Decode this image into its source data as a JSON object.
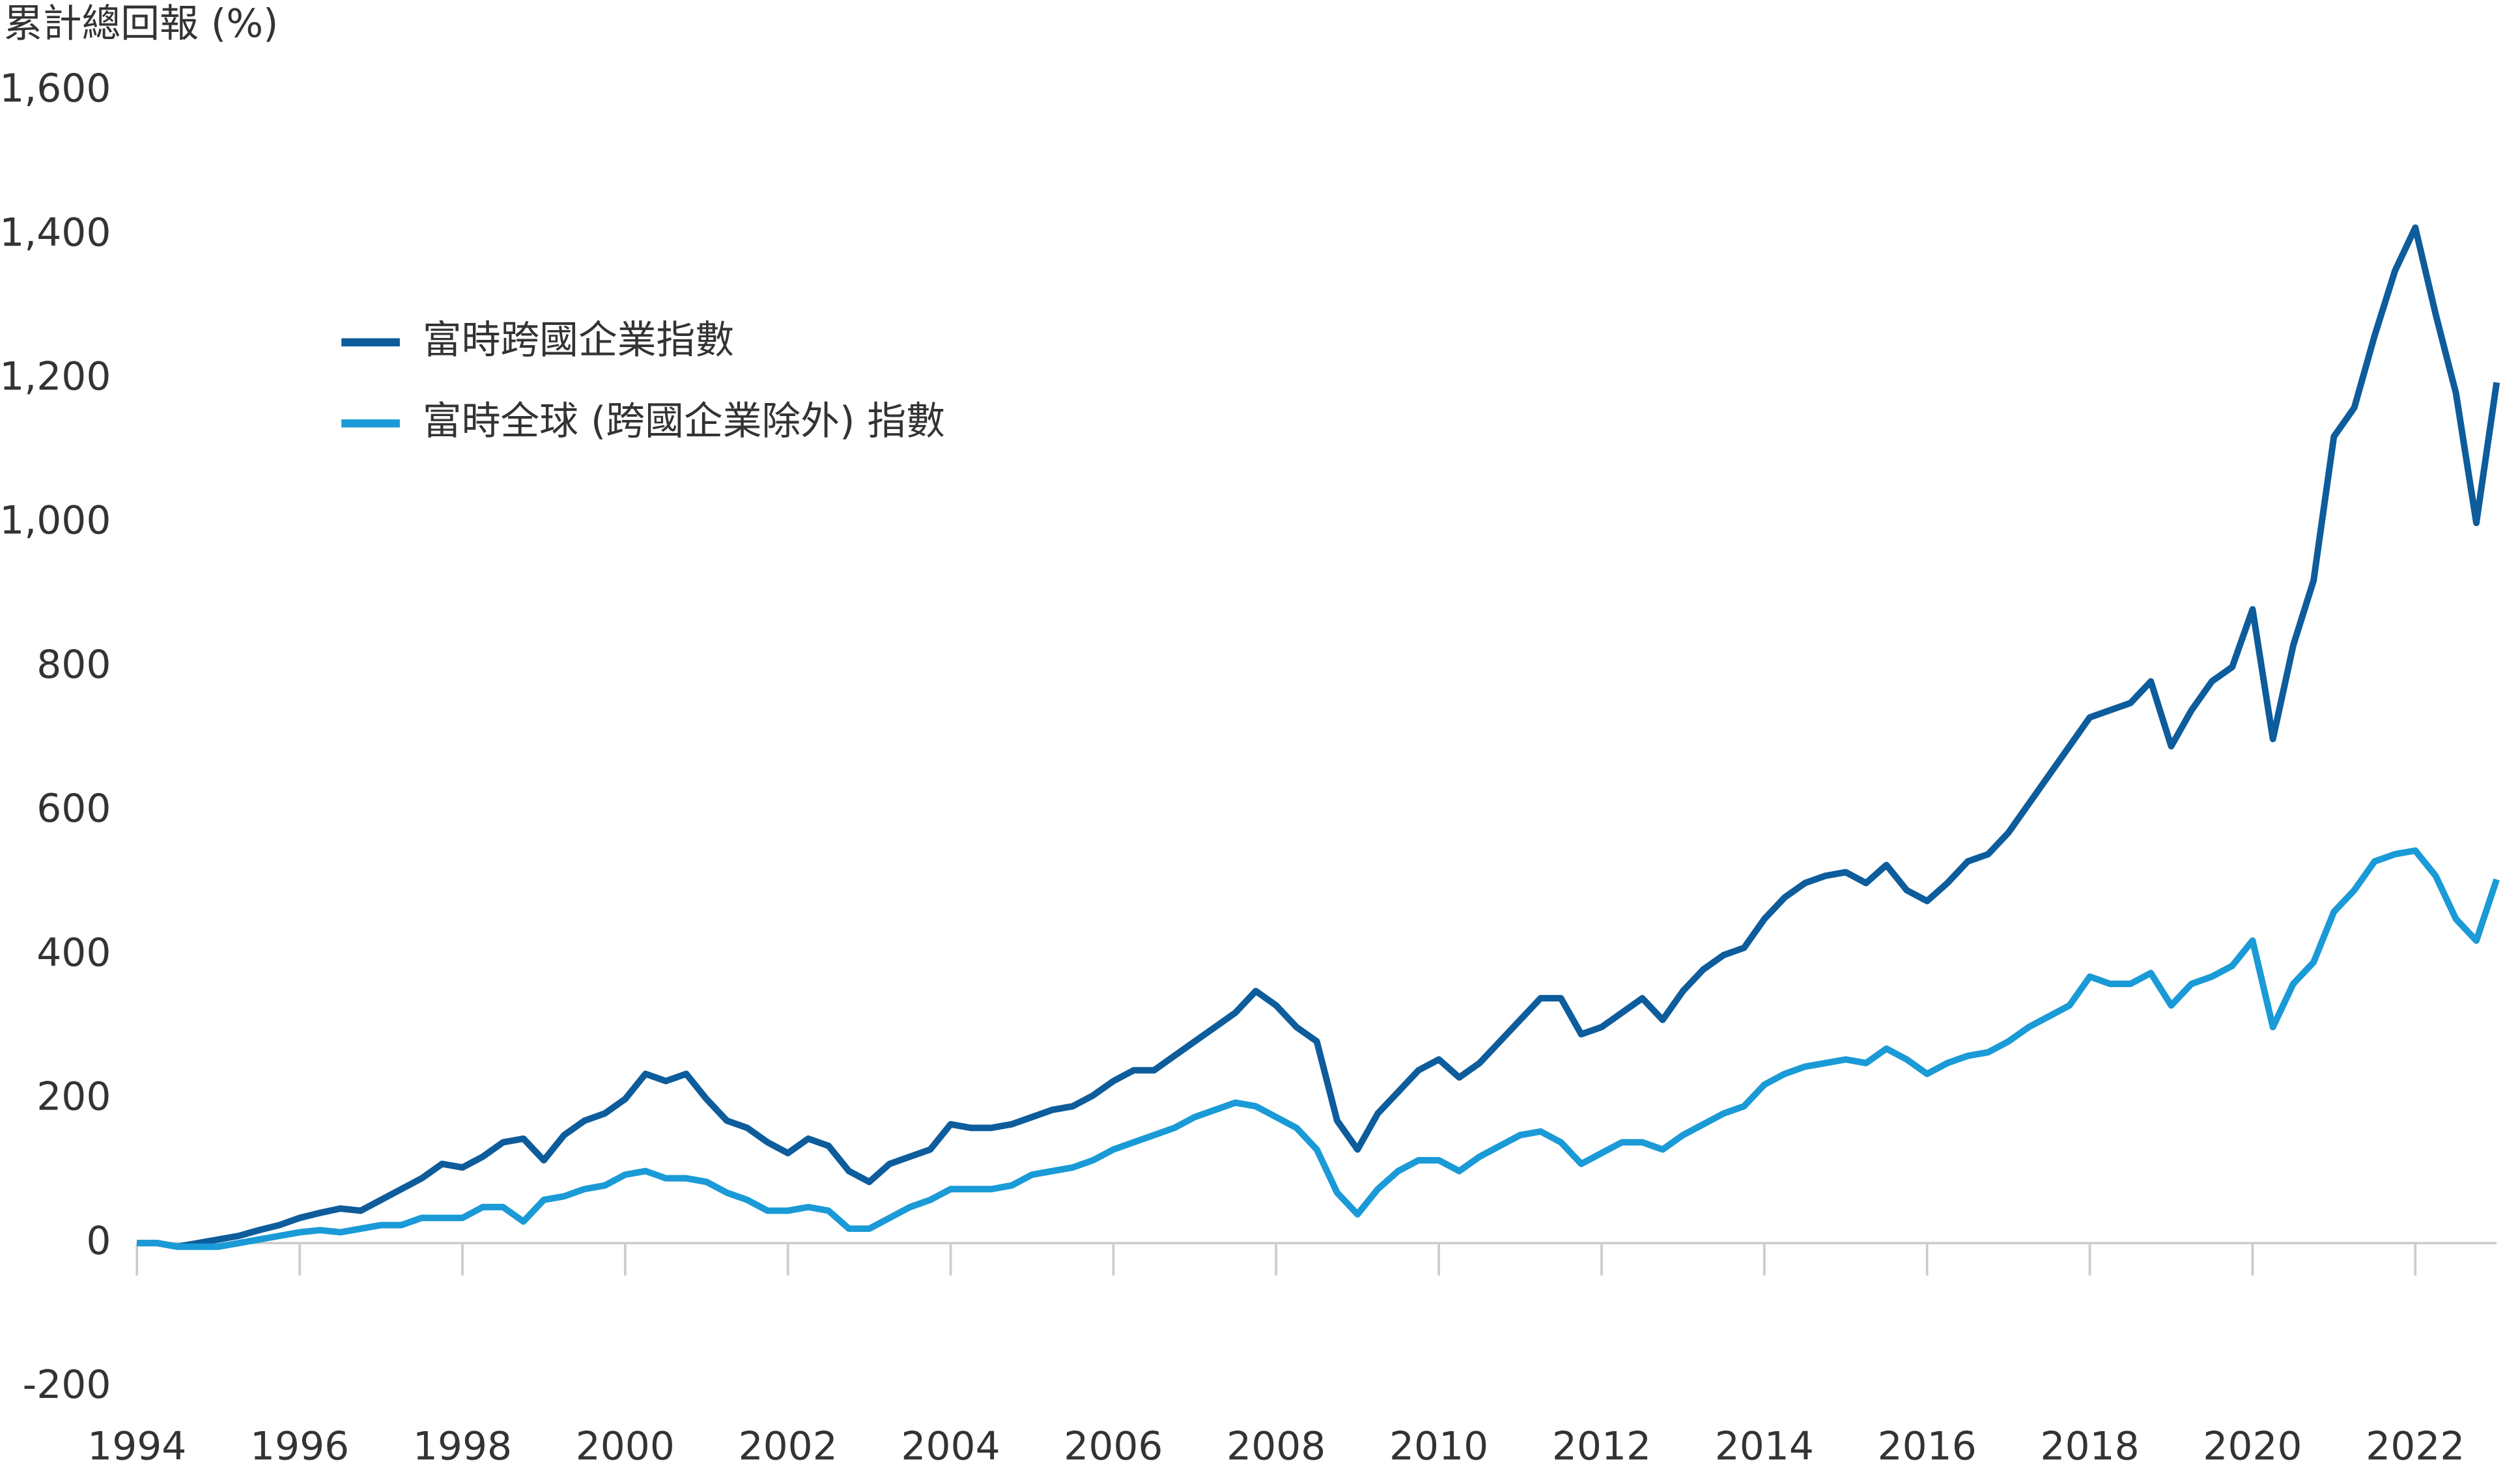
{
  "chart_data": {
    "type": "line",
    "title": "累計總回報 (%)",
    "x": [
      1994,
      1994.25,
      1994.5,
      1994.75,
      1995,
      1995.25,
      1995.5,
      1995.75,
      1996,
      1996.25,
      1996.5,
      1996.75,
      1997,
      1997.25,
      1997.5,
      1997.75,
      1998,
      1998.25,
      1998.5,
      1998.75,
      1999,
      1999.25,
      1999.5,
      1999.75,
      2000,
      2000.25,
      2000.5,
      2000.75,
      2001,
      2001.25,
      2001.5,
      2001.75,
      2002,
      2002.25,
      2002.5,
      2002.75,
      2003,
      2003.25,
      2003.5,
      2003.75,
      2004,
      2004.25,
      2004.5,
      2004.75,
      2005,
      2005.25,
      2005.5,
      2005.75,
      2006,
      2006.25,
      2006.5,
      2006.75,
      2007,
      2007.25,
      2007.5,
      2007.75,
      2008,
      2008.25,
      2008.5,
      2008.75,
      2009,
      2009.25,
      2009.5,
      2009.75,
      2010,
      2010.25,
      2010.5,
      2010.75,
      2011,
      2011.25,
      2011.5,
      2011.75,
      2012,
      2012.25,
      2012.5,
      2012.75,
      2013,
      2013.25,
      2013.5,
      2013.75,
      2014,
      2014.25,
      2014.5,
      2014.75,
      2015,
      2015.25,
      2015.5,
      2015.75,
      2016,
      2016.25,
      2016.5,
      2016.75,
      2017,
      2017.25,
      2017.5,
      2017.75,
      2018,
      2018.25,
      2018.5,
      2018.75,
      2019,
      2019.25,
      2019.5,
      2019.75,
      2020,
      2020.25,
      2020.5,
      2020.75,
      2021,
      2021.25,
      2021.5,
      2021.75,
      2022,
      2022.25,
      2022.5,
      2022.75,
      2023
    ],
    "series": [
      {
        "name": "富時跨國企業指數",
        "color": "#0d5c9c",
        "values": [
          0,
          0,
          -5,
          0,
          5,
          10,
          18,
          25,
          35,
          42,
          48,
          45,
          60,
          75,
          90,
          110,
          105,
          120,
          140,
          145,
          115,
          150,
          170,
          180,
          200,
          235,
          225,
          235,
          200,
          170,
          160,
          140,
          125,
          145,
          135,
          100,
          85,
          110,
          120,
          130,
          165,
          160,
          160,
          165,
          175,
          185,
          190,
          205,
          225,
          240,
          240,
          260,
          280,
          300,
          320,
          350,
          330,
          300,
          280,
          170,
          130,
          180,
          210,
          240,
          255,
          230,
          250,
          280,
          310,
          340,
          340,
          290,
          300,
          320,
          340,
          310,
          350,
          380,
          400,
          410,
          450,
          480,
          500,
          510,
          515,
          500,
          525,
          490,
          475,
          500,
          530,
          540,
          570,
          610,
          650,
          690,
          730,
          740,
          750,
          780,
          690,
          740,
          780,
          800,
          880,
          700,
          830,
          920,
          1120,
          1160,
          1260,
          1350,
          1410,
          1290,
          1180,
          1000,
          1195
        ]
      },
      {
        "name": "富時全球 (跨國企業除外) 指數",
        "color": "#1a9ad6",
        "values": [
          0,
          0,
          -5,
          -5,
          -5,
          0,
          5,
          10,
          15,
          18,
          15,
          20,
          25,
          25,
          35,
          35,
          35,
          50,
          50,
          30,
          60,
          65,
          75,
          80,
          95,
          100,
          90,
          90,
          85,
          70,
          60,
          45,
          45,
          50,
          45,
          20,
          20,
          35,
          50,
          60,
          75,
          75,
          75,
          80,
          95,
          100,
          105,
          115,
          130,
          140,
          150,
          160,
          175,
          185,
          195,
          190,
          175,
          160,
          130,
          70,
          40,
          75,
          100,
          115,
          115,
          100,
          120,
          135,
          150,
          155,
          140,
          110,
          125,
          140,
          140,
          130,
          150,
          165,
          180,
          190,
          220,
          235,
          245,
          250,
          255,
          250,
          270,
          255,
          235,
          250,
          260,
          265,
          280,
          300,
          315,
          330,
          370,
          360,
          360,
          375,
          330,
          360,
          370,
          385,
          420,
          300,
          360,
          390,
          460,
          490,
          530,
          540,
          545,
          510,
          450,
          420,
          505
        ]
      }
    ],
    "xlim": [
      1994,
      2023
    ],
    "xticks": [
      1994,
      1996,
      1998,
      2000,
      2002,
      2004,
      2006,
      2008,
      2010,
      2012,
      2014,
      2016,
      2018,
      2020,
      2022
    ],
    "ylim": [
      -200,
      1600
    ],
    "yticks": [
      -200,
      0,
      200,
      400,
      600,
      800,
      {
        "value": 1000,
        "label": "1,000"
      },
      {
        "value": 1200,
        "label": "1,200"
      },
      {
        "value": 1400,
        "label": "1,400"
      },
      {
        "value": 1600,
        "label": "1,600"
      }
    ],
    "legend": "upper left"
  }
}
